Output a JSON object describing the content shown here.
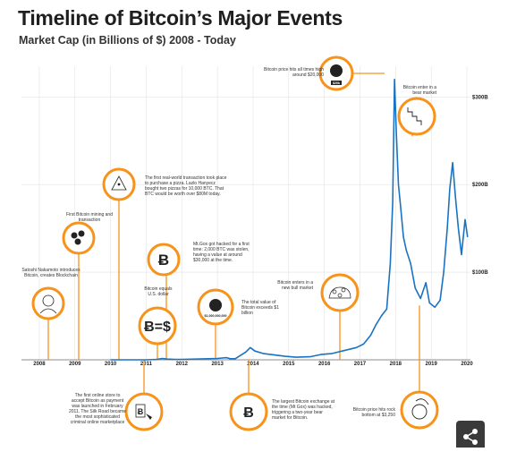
{
  "title": "Timeline of Bitcoin’s Major Events",
  "subtitle": "Market Cap (in Billions of $) 2008 - Today",
  "colors": {
    "line": "#1a73c2",
    "accent": "#f7931a",
    "axis": "#333333",
    "grid": "#e3e3e3"
  },
  "chart_data": {
    "type": "line",
    "title": "Timeline of Bitcoin’s Major Events",
    "subtitle": "Market Cap (in Billions of $) 2008 - Today",
    "xlabel": "",
    "ylabel": "",
    "x_ticks": [
      "2008",
      "2009",
      "2010",
      "2011",
      "2012",
      "2013",
      "2014",
      "2015",
      "2016",
      "2017",
      "2018",
      "2019",
      "2020"
    ],
    "y_ticks": [
      {
        "value": 100,
        "label": "$100B"
      },
      {
        "value": 200,
        "label": "$200B"
      },
      {
        "value": 300,
        "label": "$300B"
      }
    ],
    "xlim": [
      2007.5,
      2020.1
    ],
    "ylim": [
      0,
      335
    ],
    "grid": true,
    "series": [
      {
        "x": [
          2010.0,
          2010.5,
          2011.0,
          2011.3,
          2011.45,
          2011.6,
          2011.8,
          2012.0,
          2012.5,
          2013.0,
          2013.25,
          2013.35,
          2013.5,
          2013.8,
          2013.92,
          2014.05,
          2014.3,
          2014.6,
          2014.9,
          2015.2,
          2015.6,
          2015.9,
          2016.2,
          2016.5,
          2016.9,
          2017.1,
          2017.3,
          2017.45,
          2017.6,
          2017.75,
          2017.85,
          2017.92,
          2017.97,
          2018.02,
          2018.08,
          2018.14,
          2018.22,
          2018.3,
          2018.42,
          2018.55,
          2018.7,
          2018.85,
          2018.95,
          2019.1,
          2019.25,
          2019.35,
          2019.45,
          2019.52,
          2019.6,
          2019.68,
          2019.76,
          2019.85,
          2019.95,
          2020.02
        ],
        "y": [
          0,
          0,
          0,
          0.5,
          1.5,
          0.8,
          0.5,
          0.5,
          1,
          1.5,
          2.5,
          1.3,
          1.2,
          9,
          14,
          10,
          7,
          5.5,
          4,
          3,
          3.5,
          6,
          7,
          10,
          14,
          18,
          28,
          40,
          50,
          58,
          110,
          180,
          320,
          260,
          200,
          175,
          140,
          125,
          110,
          82,
          70,
          88,
          65,
          60,
          68,
          100,
          150,
          195,
          225,
          185,
          150,
          120,
          160,
          140
        ]
      }
    ],
    "annotations": [
      {
        "year": "2008",
        "text": "Satoshi Nakamoto introduces Bitcoin, creates Blockchain"
      },
      {
        "year": "2009",
        "text": "First Bitcoin mining and transaction"
      },
      {
        "year": "2010",
        "text": "The first real-world transaction took place to purchase a pizza. Lazlo Hanyecz bought two pizzas for 10,000 BTC. That BTC would be worth over $80M today."
      },
      {
        "year": "2010",
        "text": "The first online store to accept Bitcoin as payment was launched in February 2011. The Silk Road became the most sophisticated criminal online marketplace"
      },
      {
        "year": "2011",
        "text": "Bitcoin equals U.S. dollar"
      },
      {
        "year": "2011",
        "text": "Mt.Gox got hacked for a first time: 2,000 BTC was stolen, having a value at around $30,000 at the time."
      },
      {
        "year": "2013",
        "text": "The total value of Bitcoin exceeds $1 billion"
      },
      {
        "year": "2014",
        "text": "The largest Bitcoin exchange at the time (Mt Gox) was hacked, triggering a two-year bear market for Bitcoin."
      },
      {
        "year": "2016",
        "text": "Bitcoin enters in a new bull market"
      },
      {
        "year": "2017",
        "text": "Bitcoin price hits all times high around $20,000"
      },
      {
        "year": "2018",
        "text": "Bitcoin enter in a bear market"
      },
      {
        "year": "2018",
        "text": "Bitcoin price hits rock bottom at $3,250"
      }
    ]
  },
  "notes": {
    "satoshi": "Satoshi Nakamoto introduces Bitcoin, creates Blockchain",
    "mining": "First Bitcoin mining and transaction",
    "pizza": "The first real-world transaction took place to purchase a pizza. Lazlo Hanyecz bought two pizzas for 10,000 BTC. That BTC would be worth over $80M today.",
    "silkroad": "The first online store to accept Bitcoin as payment was launched in February 2011. The Silk Road became the most sophisticated criminal online marketplace",
    "parity": "Bitcoin equals U.S. dollar",
    "mtgox1": "Mt.Gox got hacked for a first time: 2,000 BTC was stolen, having a value at around $30,000 at the time.",
    "billion": "The total value of Bitcoin exceeds $1 billion",
    "mtgox2": "The largest Bitcoin exchange at the time (Mt Gox) was hacked, triggering a two-year bear market for Bitcoin.",
    "bull": "Bitcoin enters in a new bull market",
    "ath": "Bitcoin price hits all times high around $20,000",
    "bear": "Bitcoin enter in a bear market",
    "bottom": "Bitcoin price hits rock bottom at $3,250"
  },
  "icon_labels": {
    "equals": "Ƀ=$",
    "billion": "$1,000,000,000",
    "ath": "$20k",
    "btc": "Ƀ"
  },
  "icons": [
    "person-icon",
    "coins-icon",
    "pizza-icon",
    "bitcoin-icon",
    "scale-icon",
    "bitcoin-vault-icon",
    "hand-icon",
    "network-icon",
    "trophy-icon",
    "stairs-down-icon",
    "ball-icon",
    "cart-icon",
    "share-icon"
  ]
}
